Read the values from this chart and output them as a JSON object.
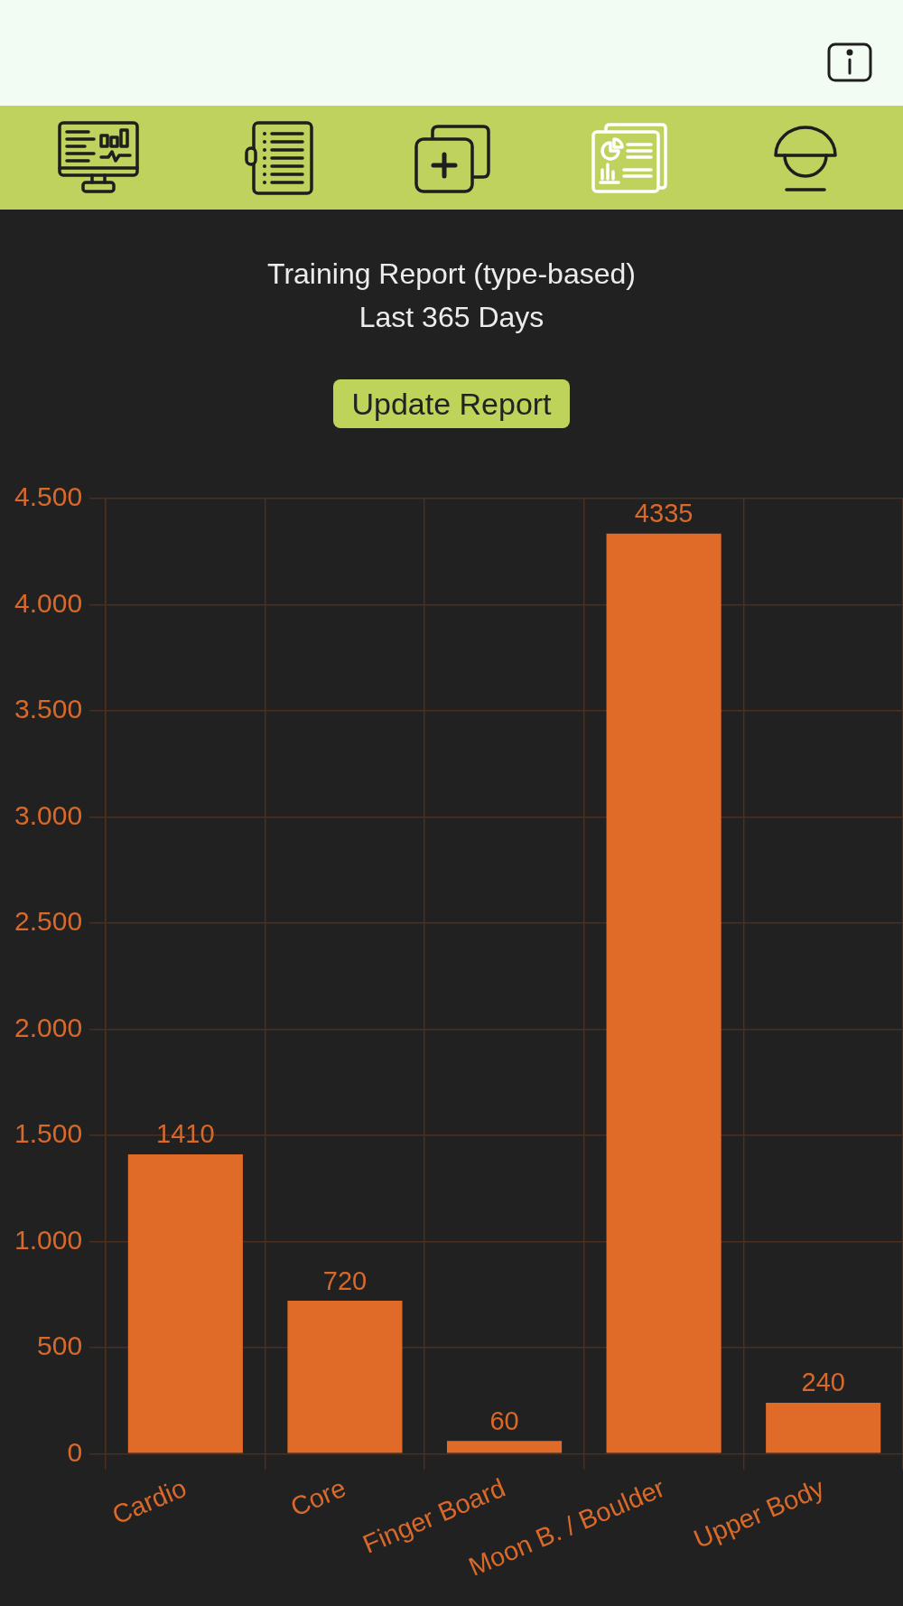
{
  "chart_data": {
    "type": "bar",
    "title": "Training Report (type-based)",
    "subtitle": "Last 365 Days",
    "annotations": [
      "Update Report"
    ],
    "categories": [
      "Cardio",
      "Core",
      "Finger Board",
      "Moon B. / Boulder",
      "Upper Body"
    ],
    "values": [
      1410,
      720,
      60,
      4335,
      240
    ],
    "color": "#e06a28",
    "ylim": [
      0,
      4500
    ],
    "yticks": [
      0,
      500,
      {
        "value": 1000,
        "label": "1.000"
      },
      {
        "value": 1500,
        "label": "1.500"
      },
      {
        "value": 2000,
        "label": "2.000"
      },
      {
        "value": 2500,
        "label": "2.500"
      },
      {
        "value": 3000,
        "label": "3.000"
      },
      {
        "value": 3500,
        "label": "3.500"
      },
      {
        "value": 4000,
        "label": "4.000"
      },
      {
        "value": 4500,
        "label": "4.500"
      }
    ],
    "grid": true,
    "data_labels": true
  }
}
